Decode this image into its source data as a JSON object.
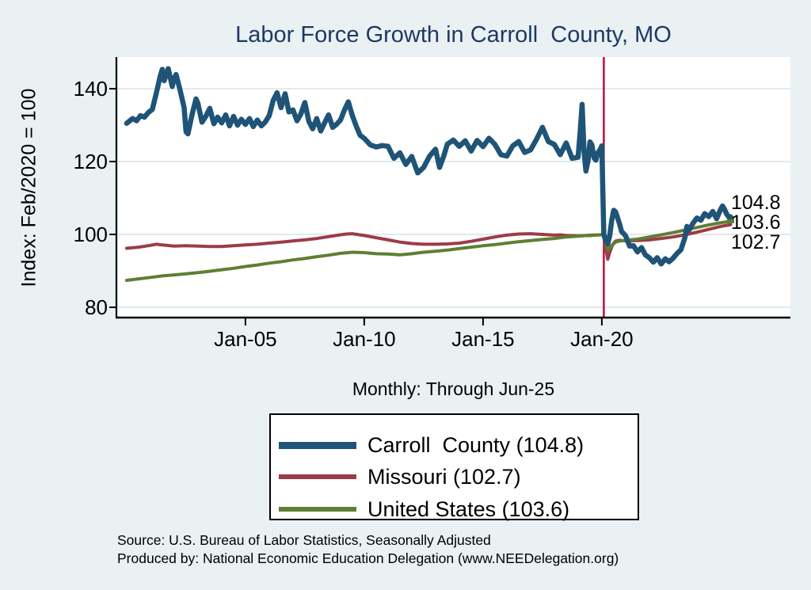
{
  "title": "Labor Force Growth in Carroll  County, MO",
  "subtitle": "Monthly: Through Jun-25",
  "y_axis_title": "Index: Feb/2020 = 100",
  "notes": {
    "source": "Source: U.S. Bureau of Labor Statistics, Seasonally Adjusted",
    "produced_by": "Produced by: National Economic Education Delegation (www.NEEDelegation.org)"
  },
  "colors": {
    "background": "#e9f1f3",
    "plot_background": "#ffffff",
    "title": "#1f3864",
    "gridline": "#dfeaee",
    "axis": "#000000",
    "carroll_county": "#1f5478",
    "missouri": "#9d3b47",
    "united_states": "#5e7f33",
    "event_line": "#c00d3d"
  },
  "legend": {
    "entries": [
      {
        "label": "Carroll  County (104.8)",
        "color": "#1f5478",
        "thickness": 9
      },
      {
        "label": "Missouri (102.7)",
        "color": "#9d3b47",
        "thickness": 6
      },
      {
        "label": "United States (103.6)",
        "color": "#5e7f33",
        "thickness": 6
      }
    ]
  },
  "chart_data": {
    "type": "line",
    "title": "Labor Force Growth in Carroll  County, MO",
    "xlabel": "",
    "ylabel": "Index: Feb/2020 = 100",
    "xlim": [
      1999.57,
      2027.93
    ],
    "ylim": [
      77.2,
      148.7
    ],
    "grid": true,
    "legend_position": "bottom-center",
    "y_ticks": [
      {
        "label": "80",
        "value": 80
      },
      {
        "label": "100",
        "value": 100
      },
      {
        "label": "120",
        "value": 120
      },
      {
        "label": "140",
        "value": 140
      }
    ],
    "x_ticks": [
      {
        "label": "Jan-05",
        "year": 2005.0
      },
      {
        "label": "Jan-10",
        "year": 2010.0
      },
      {
        "label": "Jan-15",
        "year": 2015.0
      },
      {
        "label": "Jan-20",
        "year": 2020.0
      }
    ],
    "event_line": {
      "x": 2020.083,
      "note": "Feb-2020 index base"
    },
    "end_labels": [
      {
        "text": "104.8"
      },
      {
        "text": "103.6"
      },
      {
        "text": "102.7"
      }
    ],
    "series": [
      {
        "name": "Missouri",
        "legend_label": "Missouri (102.7)",
        "color": "#9d3b47",
        "line_width": 4,
        "end_value": 102.7,
        "points": [
          [
            2000.0,
            96.2
          ],
          [
            2000.5,
            96.5
          ],
          [
            2001.0,
            97.0
          ],
          [
            2001.25,
            97.3
          ],
          [
            2001.5,
            97.1
          ],
          [
            2002.0,
            96.8
          ],
          [
            2002.5,
            96.9
          ],
          [
            2003.0,
            96.8
          ],
          [
            2003.5,
            96.7
          ],
          [
            2004.0,
            96.7
          ],
          [
            2004.5,
            96.9
          ],
          [
            2005.0,
            97.1
          ],
          [
            2005.5,
            97.3
          ],
          [
            2006.0,
            97.6
          ],
          [
            2006.5,
            97.9
          ],
          [
            2007.0,
            98.2
          ],
          [
            2007.5,
            98.5
          ],
          [
            2008.0,
            98.9
          ],
          [
            2008.5,
            99.4
          ],
          [
            2009.0,
            99.9
          ],
          [
            2009.25,
            100.1
          ],
          [
            2009.5,
            100.2
          ],
          [
            2010.0,
            99.7
          ],
          [
            2010.5,
            99.1
          ],
          [
            2011.0,
            98.5
          ],
          [
            2011.5,
            97.9
          ],
          [
            2012.0,
            97.5
          ],
          [
            2012.5,
            97.3
          ],
          [
            2013.0,
            97.3
          ],
          [
            2013.5,
            97.4
          ],
          [
            2014.0,
            97.6
          ],
          [
            2014.5,
            98.1
          ],
          [
            2015.0,
            98.7
          ],
          [
            2015.5,
            99.3
          ],
          [
            2016.0,
            99.8
          ],
          [
            2016.5,
            100.1
          ],
          [
            2017.0,
            100.2
          ],
          [
            2017.5,
            100.0
          ],
          [
            2018.0,
            99.8
          ],
          [
            2018.25,
            99.9
          ],
          [
            2018.5,
            99.7
          ],
          [
            2019.0,
            99.6
          ],
          [
            2019.5,
            99.7
          ],
          [
            2019.92,
            99.9
          ],
          [
            2020.083,
            100.0
          ],
          [
            2020.17,
            96.0
          ],
          [
            2020.25,
            93.2
          ],
          [
            2020.33,
            95.0
          ],
          [
            2020.42,
            96.6
          ],
          [
            2020.5,
            97.6
          ],
          [
            2020.58,
            98.2
          ],
          [
            2020.75,
            98.4
          ],
          [
            2021.0,
            98.2
          ],
          [
            2021.5,
            98.3
          ],
          [
            2022.0,
            98.5
          ],
          [
            2022.5,
            98.9
          ],
          [
            2023.0,
            99.3
          ],
          [
            2023.5,
            99.9
          ],
          [
            2024.0,
            100.6
          ],
          [
            2024.5,
            101.4
          ],
          [
            2025.0,
            102.2
          ],
          [
            2025.42,
            102.7
          ]
        ]
      },
      {
        "name": "United States",
        "legend_label": "United States (103.6)",
        "color": "#5e7f33",
        "line_width": 4,
        "end_value": 103.6,
        "end_marker": true,
        "points": [
          [
            2000.0,
            87.4
          ],
          [
            2000.5,
            87.8
          ],
          [
            2001.0,
            88.2
          ],
          [
            2001.5,
            88.6
          ],
          [
            2002.0,
            88.9
          ],
          [
            2002.5,
            89.2
          ],
          [
            2003.0,
            89.5
          ],
          [
            2003.5,
            89.9
          ],
          [
            2004.0,
            90.3
          ],
          [
            2004.5,
            90.7
          ],
          [
            2005.0,
            91.2
          ],
          [
            2005.5,
            91.6
          ],
          [
            2006.0,
            92.1
          ],
          [
            2006.5,
            92.5
          ],
          [
            2007.0,
            93.0
          ],
          [
            2007.5,
            93.4
          ],
          [
            2008.0,
            93.9
          ],
          [
            2008.5,
            94.3
          ],
          [
            2009.0,
            94.8
          ],
          [
            2009.5,
            95.1
          ],
          [
            2010.0,
            95.0
          ],
          [
            2010.5,
            94.7
          ],
          [
            2011.0,
            94.6
          ],
          [
            2011.5,
            94.4
          ],
          [
            2012.0,
            94.7
          ],
          [
            2012.5,
            95.1
          ],
          [
            2013.0,
            95.4
          ],
          [
            2013.5,
            95.7
          ],
          [
            2014.0,
            96.1
          ],
          [
            2014.5,
            96.5
          ],
          [
            2015.0,
            96.9
          ],
          [
            2015.5,
            97.2
          ],
          [
            2016.0,
            97.6
          ],
          [
            2016.5,
            98.0
          ],
          [
            2017.0,
            98.3
          ],
          [
            2017.5,
            98.6
          ],
          [
            2018.0,
            98.9
          ],
          [
            2018.5,
            99.3
          ],
          [
            2019.0,
            99.5
          ],
          [
            2019.5,
            99.8
          ],
          [
            2020.0,
            99.9
          ],
          [
            2020.083,
            100.0
          ],
          [
            2020.25,
            95.7
          ],
          [
            2020.42,
            97.0
          ],
          [
            2020.58,
            97.9
          ],
          [
            2020.75,
            98.2
          ],
          [
            2021.0,
            98.4
          ],
          [
            2021.5,
            98.7
          ],
          [
            2022.0,
            99.3
          ],
          [
            2022.5,
            99.9
          ],
          [
            2023.0,
            100.5
          ],
          [
            2023.5,
            101.2
          ],
          [
            2024.0,
            101.9
          ],
          [
            2024.5,
            102.6
          ],
          [
            2025.0,
            103.2
          ],
          [
            2025.42,
            103.6
          ]
        ]
      },
      {
        "name": "Carroll  County",
        "legend_label": "Carroll  County (104.8)",
        "color": "#1f5478",
        "line_width": 6.5,
        "end_value": 104.8,
        "points": [
          [
            2000.0,
            130.5
          ],
          [
            2000.25,
            131.8
          ],
          [
            2000.42,
            131.2
          ],
          [
            2000.58,
            132.6
          ],
          [
            2000.75,
            132.2
          ],
          [
            2000.92,
            133.5
          ],
          [
            2001.08,
            134.3
          ],
          [
            2001.25,
            138.8
          ],
          [
            2001.42,
            143.6
          ],
          [
            2001.5,
            145.3
          ],
          [
            2001.58,
            142.2
          ],
          [
            2001.75,
            145.5
          ],
          [
            2001.92,
            140.6
          ],
          [
            2002.0,
            142.8
          ],
          [
            2002.08,
            143.9
          ],
          [
            2002.25,
            139.6
          ],
          [
            2002.42,
            134.8
          ],
          [
            2002.5,
            128.2
          ],
          [
            2002.58,
            127.6
          ],
          [
            2002.75,
            132.8
          ],
          [
            2002.92,
            137.2
          ],
          [
            2003.0,
            136.0
          ],
          [
            2003.17,
            130.8
          ],
          [
            2003.33,
            132.4
          ],
          [
            2003.5,
            134.6
          ],
          [
            2003.67,
            130.4
          ],
          [
            2003.83,
            132.2
          ],
          [
            2004.0,
            130.6
          ],
          [
            2004.17,
            132.8
          ],
          [
            2004.33,
            129.8
          ],
          [
            2004.5,
            132.4
          ],
          [
            2004.67,
            130.0
          ],
          [
            2004.83,
            131.6
          ],
          [
            2005.0,
            130.2
          ],
          [
            2005.17,
            131.8
          ],
          [
            2005.33,
            129.6
          ],
          [
            2005.5,
            131.4
          ],
          [
            2005.67,
            129.8
          ],
          [
            2005.83,
            130.8
          ],
          [
            2006.0,
            132.6
          ],
          [
            2006.17,
            136.8
          ],
          [
            2006.33,
            138.9
          ],
          [
            2006.5,
            134.8
          ],
          [
            2006.67,
            138.6
          ],
          [
            2006.83,
            133.6
          ],
          [
            2007.0,
            134.2
          ],
          [
            2007.17,
            131.2
          ],
          [
            2007.33,
            133.0
          ],
          [
            2007.5,
            136.2
          ],
          [
            2007.67,
            131.0
          ],
          [
            2007.83,
            129.0
          ],
          [
            2008.0,
            131.8
          ],
          [
            2008.17,
            128.4
          ],
          [
            2008.33,
            130.6
          ],
          [
            2008.5,
            132.8
          ],
          [
            2008.67,
            129.4
          ],
          [
            2008.83,
            130.2
          ],
          [
            2009.0,
            131.4
          ],
          [
            2009.17,
            134.2
          ],
          [
            2009.33,
            136.4
          ],
          [
            2009.5,
            132.6
          ],
          [
            2009.67,
            129.6
          ],
          [
            2009.83,
            127.2
          ],
          [
            2010.0,
            126.4
          ],
          [
            2010.25,
            124.6
          ],
          [
            2010.5,
            124.0
          ],
          [
            2010.75,
            124.4
          ],
          [
            2011.0,
            124.2
          ],
          [
            2011.25,
            120.9
          ],
          [
            2011.5,
            122.4
          ],
          [
            2011.75,
            119.2
          ],
          [
            2012.0,
            121.4
          ],
          [
            2012.25,
            116.9
          ],
          [
            2012.5,
            118.4
          ],
          [
            2012.75,
            121.5
          ],
          [
            2013.0,
            123.4
          ],
          [
            2013.17,
            118.4
          ],
          [
            2013.33,
            121.2
          ],
          [
            2013.5,
            124.8
          ],
          [
            2013.75,
            125.9
          ],
          [
            2014.0,
            124.2
          ],
          [
            2014.25,
            125.7
          ],
          [
            2014.5,
            122.9
          ],
          [
            2014.75,
            125.8
          ],
          [
            2015.0,
            124.1
          ],
          [
            2015.25,
            126.4
          ],
          [
            2015.5,
            124.7
          ],
          [
            2015.75,
            121.9
          ],
          [
            2016.0,
            121.5
          ],
          [
            2016.25,
            124.3
          ],
          [
            2016.5,
            125.5
          ],
          [
            2016.75,
            122.5
          ],
          [
            2017.0,
            123.2
          ],
          [
            2017.25,
            126.1
          ],
          [
            2017.5,
            129.4
          ],
          [
            2017.75,
            125.5
          ],
          [
            2018.0,
            124.7
          ],
          [
            2018.25,
            121.9
          ],
          [
            2018.5,
            125.1
          ],
          [
            2018.75,
            120.9
          ],
          [
            2019.0,
            121.2
          ],
          [
            2019.08,
            127.5
          ],
          [
            2019.17,
            135.7
          ],
          [
            2019.25,
            122.8
          ],
          [
            2019.33,
            117.4
          ],
          [
            2019.42,
            120.2
          ],
          [
            2019.5,
            125.4
          ],
          [
            2019.58,
            124.6
          ],
          [
            2019.67,
            121.0
          ],
          [
            2019.75,
            120.4
          ],
          [
            2019.83,
            122.4
          ],
          [
            2019.92,
            123.2
          ],
          [
            2020.0,
            124.3
          ],
          [
            2020.083,
            100.0
          ],
          [
            2020.17,
            98.2
          ],
          [
            2020.25,
            97.4
          ],
          [
            2020.33,
            99.6
          ],
          [
            2020.42,
            104.0
          ],
          [
            2020.5,
            106.6
          ],
          [
            2020.58,
            106.2
          ],
          [
            2020.67,
            104.4
          ],
          [
            2020.75,
            102.8
          ],
          [
            2020.83,
            100.8
          ],
          [
            2020.92,
            100.2
          ],
          [
            2021.0,
            99.6
          ],
          [
            2021.17,
            96.8
          ],
          [
            2021.33,
            96.9
          ],
          [
            2021.5,
            95.2
          ],
          [
            2021.67,
            96.4
          ],
          [
            2021.83,
            94.4
          ],
          [
            2022.0,
            93.6
          ],
          [
            2022.17,
            92.4
          ],
          [
            2022.33,
            93.6
          ],
          [
            2022.5,
            91.9
          ],
          [
            2022.67,
            93.3
          ],
          [
            2022.83,
            92.5
          ],
          [
            2023.0,
            93.5
          ],
          [
            2023.17,
            94.8
          ],
          [
            2023.33,
            95.8
          ],
          [
            2023.5,
            99.2
          ],
          [
            2023.58,
            102.2
          ],
          [
            2023.67,
            101.2
          ],
          [
            2023.83,
            103.0
          ],
          [
            2024.0,
            104.5
          ],
          [
            2024.17,
            103.9
          ],
          [
            2024.33,
            105.7
          ],
          [
            2024.5,
            104.9
          ],
          [
            2024.67,
            106.3
          ],
          [
            2024.83,
            104.3
          ],
          [
            2025.0,
            106.9
          ],
          [
            2025.08,
            107.8
          ],
          [
            2025.17,
            106.8
          ],
          [
            2025.25,
            105.6
          ],
          [
            2025.33,
            104.9
          ],
          [
            2025.42,
            104.8
          ]
        ]
      }
    ]
  }
}
